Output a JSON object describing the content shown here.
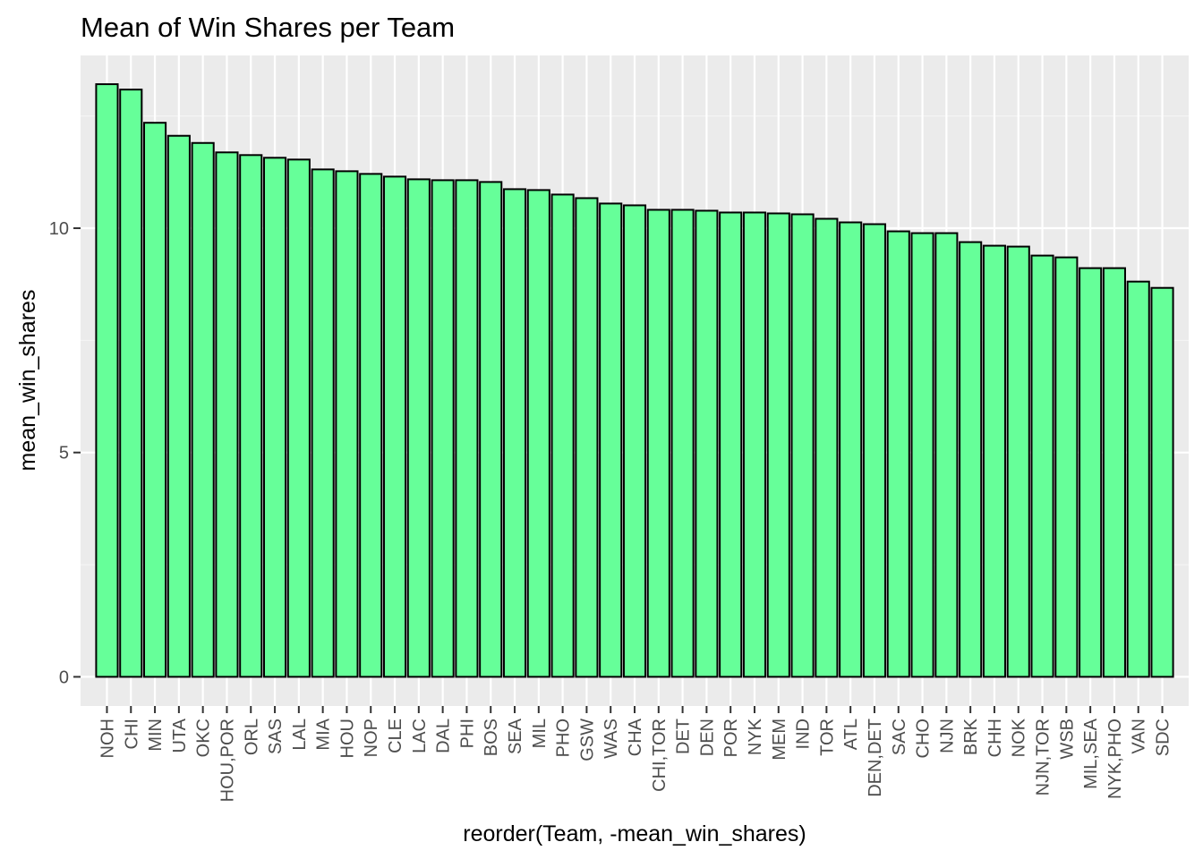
{
  "chart_data": {
    "type": "bar",
    "title": "Mean of Win Shares per Team",
    "xlabel": "reorder(Team, -mean_win_shares)",
    "ylabel": "mean_win_shares",
    "ylim": [
      -0.65,
      13.85
    ],
    "yticks": [
      0,
      5,
      10
    ],
    "grid": true,
    "legend": "none",
    "categories": [
      "NOH",
      "CHI",
      "MIN",
      "UTA",
      "OKC",
      "HOU,POR",
      "ORL",
      "SAS",
      "LAL",
      "MIA",
      "HOU",
      "NOP",
      "CLE",
      "LAC",
      "DAL",
      "PHI",
      "BOS",
      "SEA",
      "MIL",
      "PHO",
      "GSW",
      "WAS",
      "CHA",
      "CHI,TOR",
      "DET",
      "DEN",
      "POR",
      "NYK",
      "MEM",
      "IND",
      "TOR",
      "ATL",
      "DEN,DET",
      "SAC",
      "CHO",
      "NJN",
      "BRK",
      "CHH",
      "NOK",
      "NJN,TOR",
      "WSB",
      "MIL,SEA",
      "NYK,PHO",
      "VAN",
      "SDC"
    ],
    "values": [
      13.21,
      13.09,
      12.35,
      12.06,
      11.9,
      11.69,
      11.63,
      11.57,
      11.53,
      11.31,
      11.27,
      11.21,
      11.15,
      11.09,
      11.07,
      11.07,
      11.03,
      10.87,
      10.85,
      10.75,
      10.67,
      10.55,
      10.51,
      10.41,
      10.41,
      10.39,
      10.35,
      10.35,
      10.33,
      10.31,
      10.21,
      10.13,
      10.09,
      9.93,
      9.89,
      9.89,
      9.69,
      9.61,
      9.59,
      9.39,
      9.35,
      9.11,
      9.11,
      8.81,
      8.67
    ],
    "colors": {
      "bar_fill": "#66ff99",
      "bar_outline": "#000000",
      "panel_bg": "#ebebeb",
      "grid_major": "#ffffff",
      "grid_minor": "#f5f5f5"
    }
  }
}
